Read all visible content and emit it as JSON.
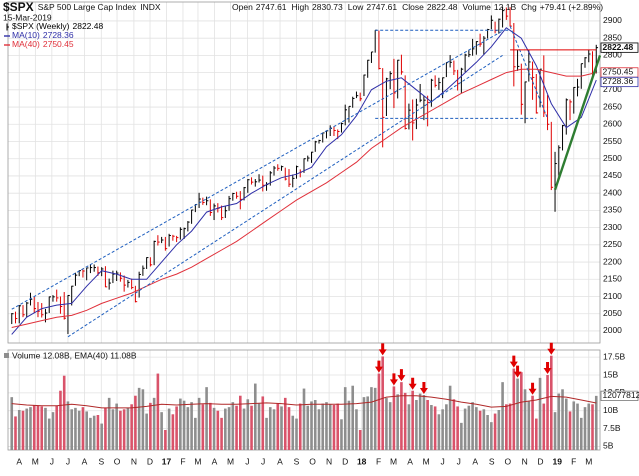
{
  "chart_data": {
    "type": "ohlc",
    "symbol": "$SPX",
    "name": "S&P 500 Large Cap Index",
    "exchange": "INDX",
    "date": "15-Mar-2019",
    "stats": [
      {
        "label": "Open",
        "value": "2747.61"
      },
      {
        "label": "High",
        "value": "2830.73"
      },
      {
        "label": "Low",
        "value": "2747.61"
      },
      {
        "label": "Close",
        "value": "2822.48"
      },
      {
        "label": "Volume",
        "value": "12.1B"
      },
      {
        "label": "Chg",
        "value": "+79.41 (+2.89%)"
      }
    ],
    "xlim": [
      -1,
      157
    ],
    "xticks": [
      {
        "value": 2,
        "label": "A"
      },
      {
        "value": 6.3,
        "label": "M"
      },
      {
        "value": 10.7,
        "label": "J"
      },
      {
        "value": 15,
        "label": "J"
      },
      {
        "value": 19.4,
        "label": "A"
      },
      {
        "value": 23.9,
        "label": "S"
      },
      {
        "value": 28.1,
        "label": "O"
      },
      {
        "value": 32.6,
        "label": "N"
      },
      {
        "value": 36.9,
        "label": "D"
      },
      {
        "value": 41.3,
        "label": "17"
      },
      {
        "value": 45.7,
        "label": "F"
      },
      {
        "value": 49.7,
        "label": "M"
      },
      {
        "value": 54.1,
        "label": "A"
      },
      {
        "value": 58.4,
        "label": "M"
      },
      {
        "value": 62.9,
        "label": "J"
      },
      {
        "value": 67.1,
        "label": "J"
      },
      {
        "value": 71.6,
        "label": "A"
      },
      {
        "value": 76,
        "label": "S"
      },
      {
        "value": 80.3,
        "label": "O"
      },
      {
        "value": 84.7,
        "label": "N"
      },
      {
        "value": 89,
        "label": "D"
      },
      {
        "value": 93.4,
        "label": "18"
      },
      {
        "value": 97.9,
        "label": "F"
      },
      {
        "value": 101.9,
        "label": "M"
      },
      {
        "value": 106.3,
        "label": "A"
      },
      {
        "value": 110.6,
        "label": "M"
      },
      {
        "value": 115,
        "label": "J"
      },
      {
        "value": 119.3,
        "label": "J"
      },
      {
        "value": 123.7,
        "label": "A"
      },
      {
        "value": 128.1,
        "label": "S"
      },
      {
        "value": 132.4,
        "label": "O"
      },
      {
        "value": 136.9,
        "label": "N"
      },
      {
        "value": 141.1,
        "label": "D"
      },
      {
        "value": 145.6,
        "label": "19"
      },
      {
        "value": 150,
        "label": "F"
      },
      {
        "value": 154,
        "label": "M"
      }
    ],
    "ylim": [
      1965,
      2955
    ],
    "yticks": [
      2000,
      2050,
      2100,
      2150,
      2200,
      2250,
      2300,
      2350,
      2400,
      2450,
      2500,
      2550,
      2600,
      2650,
      2700,
      2750,
      2800,
      2850,
      2900
    ],
    "grid": true,
    "series": [
      {
        "name": "$SPX (Weekly)",
        "last_label": "2822.48",
        "up_color": "#000000",
        "down_color": "#e00000",
        "close": [
          2050,
          2036,
          2073,
          2047,
          2081,
          2092,
          2065,
          2057,
          2047,
          2052,
          2099,
          2099,
          2096,
          2071,
          2037,
          2103,
          2130,
          2162,
          2175,
          2174,
          2183,
          2184,
          2184,
          2169,
          2180,
          2128,
          2139,
          2165,
          2168,
          2153,
          2133,
          2141,
          2126,
          2085,
          2164,
          2182,
          2213,
          2192,
          2260,
          2258,
          2264,
          2239,
          2277,
          2275,
          2271,
          2295,
          2297,
          2316,
          2351,
          2367,
          2383,
          2373,
          2378,
          2344,
          2363,
          2356,
          2329,
          2349,
          2384,
          2399,
          2391,
          2382,
          2416,
          2439,
          2432,
          2433,
          2438,
          2423,
          2425,
          2459,
          2473,
          2472,
          2477,
          2441,
          2426,
          2443,
          2477,
          2461,
          2500,
          2502,
          2519,
          2549,
          2553,
          2575,
          2581,
          2588,
          2582,
          2579,
          2602,
          2642,
          2652,
          2675,
          2683,
          2674,
          2743,
          2786,
          2810,
          2873,
          2762,
          2620,
          2732,
          2747,
          2691,
          2786,
          2752,
          2588,
          2641,
          2604,
          2656,
          2670,
          2670,
          2663,
          2728,
          2713,
          2721,
          2735,
          2779,
          2780,
          2755,
          2718,
          2760,
          2801,
          2802,
          2819,
          2840,
          2833,
          2850,
          2875,
          2902,
          2872,
          2905,
          2930,
          2914,
          2885,
          2767,
          2768,
          2658,
          2723,
          2781,
          2736,
          2633,
          2760,
          2633,
          2600,
          2417,
          2486,
          2532,
          2596,
          2671,
          2665,
          2707,
          2708,
          2776,
          2793,
          2804,
          2743,
          2822.48
        ],
        "low": [
          2020,
          2022,
          2022,
          2040,
          2039,
          2074,
          2052,
          2040,
          2039,
          2025,
          2052,
          2085,
          2085,
          2050,
          2033,
          1991,
          2074,
          2131,
          2159,
          2155,
          2147,
          2168,
          2172,
          2160,
          2159,
          2127,
          2120,
          2139,
          2145,
          2143,
          2114,
          2126,
          2121,
          2083,
          2097,
          2160,
          2180,
          2187,
          2191,
          2248,
          2255,
          2233,
          2245,
          2262,
          2258,
          2265,
          2267,
          2289,
          2311,
          2345,
          2357,
          2366,
          2365,
          2334,
          2322,
          2344,
          2322,
          2328,
          2349,
          2378,
          2384,
          2353,
          2379,
          2401,
          2425,
          2419,
          2431,
          2405,
          2407,
          2422,
          2451,
          2465,
          2465,
          2437,
          2418,
          2417,
          2442,
          2446,
          2459,
          2492,
          2488,
          2520,
          2544,
          2547,
          2559,
          2566,
          2566,
          2557,
          2576,
          2597,
          2605,
          2648,
          2676,
          2667,
          2682,
          2735,
          2778,
          2808,
          2759,
          2533,
          2624,
          2702,
          2647,
          2675,
          2744,
          2585,
          2585,
          2553,
          2586,
          2664,
          2612,
          2594,
          2651,
          2707,
          2700,
          2676,
          2737,
          2765,
          2743,
          2698,
          2691,
          2752,
          2795,
          2799,
          2802,
          2825,
          2802,
          2849,
          2876,
          2864,
          2863,
          2881,
          2903,
          2884,
          2710,
          2755,
          2628,
          2603,
          2724,
          2671,
          2631,
          2649,
          2621,
          2583,
          2409,
          2346,
          2443,
          2524,
          2570,
          2612,
          2631,
          2681,
          2703,
          2764,
          2780,
          2729,
          2747.61
        ],
        "high": [
          2052,
          2056,
          2075,
          2075,
          2084,
          2111,
          2099,
          2084,
          2081,
          2064,
          2100,
          2104,
          2120,
          2100,
          2113,
          2104,
          2131,
          2169,
          2176,
          2178,
          2183,
          2194,
          2193,
          2187,
          2185,
          2188,
          2152,
          2175,
          2175,
          2170,
          2161,
          2148,
          2152,
          2131,
          2172,
          2190,
          2214,
          2214,
          2262,
          2278,
          2273,
          2273,
          2282,
          2279,
          2276,
          2301,
          2300,
          2319,
          2352,
          2368,
          2401,
          2387,
          2390,
          2382,
          2370,
          2371,
          2364,
          2362,
          2392,
          2401,
          2404,
          2406,
          2418,
          2441,
          2446,
          2441,
          2455,
          2451,
          2432,
          2464,
          2479,
          2484,
          2480,
          2474,
          2470,
          2454,
          2480,
          2469,
          2501,
          2509,
          2520,
          2552,
          2555,
          2576,
          2582,
          2597,
          2594,
          2585,
          2605,
          2657,
          2652,
          2680,
          2695,
          2692,
          2744,
          2787,
          2810,
          2873,
          2872,
          2763,
          2735,
          2754,
          2790,
          2787,
          2802,
          2742,
          2660,
          2672,
          2674,
          2717,
          2683,
          2683,
          2732,
          2742,
          2735,
          2736,
          2780,
          2801,
          2785,
          2758,
          2764,
          2805,
          2816,
          2848,
          2841,
          2863,
          2856,
          2877,
          2916,
          2898,
          2907,
          2941,
          2939,
          2940,
          2894,
          2817,
          2776,
          2724,
          2815,
          2782,
          2746,
          2760,
          2800,
          2685,
          2607,
          2520,
          2539,
          2598,
          2675,
          2672,
          2708,
          2732,
          2776,
          2795,
          2817,
          2812,
          2830.73
        ]
      },
      {
        "name": "MA(10)",
        "last_label": "2728.36",
        "color": "#2f2fa8",
        "x": [
          0,
          4,
          8,
          12,
          16,
          20,
          24,
          28,
          32,
          36,
          40,
          44,
          48,
          52,
          56,
          60,
          64,
          68,
          72,
          76,
          80,
          84,
          88,
          92,
          96,
          100,
          104,
          108,
          112,
          116,
          120,
          124,
          128,
          132,
          136,
          140,
          144,
          148,
          152,
          156
        ],
        "values": [
          1990,
          2040,
          2065,
          2075,
          2080,
          2130,
          2175,
          2165,
          2150,
          2150,
          2200,
          2250,
          2290,
          2345,
          2360,
          2370,
          2400,
          2425,
          2445,
          2455,
          2475,
          2535,
          2570,
          2625,
          2700,
          2725,
          2735,
          2700,
          2665,
          2700,
          2740,
          2780,
          2825,
          2880,
          2850,
          2770,
          2660,
          2590,
          2620,
          2728.36
        ]
      },
      {
        "name": "MA(40)",
        "last_label": "2750.45",
        "color": "#e0303a",
        "x": [
          0,
          4,
          8,
          12,
          16,
          20,
          24,
          28,
          32,
          36,
          40,
          44,
          48,
          52,
          56,
          60,
          64,
          68,
          72,
          76,
          80,
          84,
          88,
          92,
          96,
          100,
          104,
          108,
          112,
          116,
          120,
          124,
          128,
          132,
          136,
          140,
          144,
          148,
          152,
          156
        ],
        "values": [
          2010,
          2020,
          2030,
          2040,
          2045,
          2060,
          2080,
          2095,
          2110,
          2130,
          2150,
          2165,
          2185,
          2210,
          2235,
          2260,
          2290,
          2320,
          2350,
          2380,
          2405,
          2430,
          2460,
          2490,
          2530,
          2560,
          2590,
          2615,
          2640,
          2665,
          2690,
          2710,
          2730,
          2750,
          2760,
          2760,
          2750,
          2740,
          2740,
          2750.45
        ]
      }
    ],
    "trendlines": [
      {
        "color": "#1f5fbf",
        "line": "dashed",
        "x": [
          0,
          131
        ],
        "y": [
          2063,
          2871
        ]
      },
      {
        "color": "#1f5fbf",
        "line": "dashed",
        "x": [
          15,
          131
        ],
        "y": [
          1983,
          2800
        ]
      },
      {
        "color": "#1f5fbf",
        "line": "dashed",
        "x": [
          97,
          133
        ],
        "y": [
          2873,
          2873
        ]
      },
      {
        "color": "#1f5fbf",
        "line": "dashed",
        "x": [
          97,
          140
        ],
        "y": [
          2617,
          2617
        ]
      },
      {
        "color": "#1f5fbf",
        "line": "dashed",
        "x": [
          133,
          143
        ],
        "y": [
          2885,
          2617
        ]
      },
      {
        "color": "#e00000",
        "line": "solid",
        "x": [
          133,
          156
        ],
        "y": [
          2816,
          2816
        ]
      },
      {
        "color": "#2e7d32",
        "line": "bold",
        "x": [
          145,
          157
        ],
        "y": [
          2410,
          2800
        ]
      }
    ],
    "volume": {
      "legend": "Volume 12.08B, EMA(40) 11.08B",
      "box_label": "12077812",
      "up_color": "#8e8e8e",
      "down_color": "#d9536a",
      "ylim": [
        4.5,
        18.5
      ],
      "yticks": [
        {
          "value": 5,
          "label": "5B"
        },
        {
          "value": 7.5,
          "label": "7.5B"
        },
        {
          "value": 10,
          "label": "10B"
        },
        {
          "value": 12.5,
          "label": "12.5B"
        },
        {
          "value": 15,
          "label": "15B"
        },
        {
          "value": 17.5,
          "label": "17.5B"
        }
      ],
      "values": [
        11.9,
        9.2,
        10.1,
        10.0,
        10.3,
        10.5,
        10.8,
        10.7,
        10.6,
        10.4,
        8.9,
        9.8,
        10.7,
        12.8,
        14.9,
        11.3,
        10.2,
        10.4,
        10.0,
        10.5,
        9.9,
        9.0,
        9.3,
        9.4,
        8.2,
        10.4,
        11.8,
        10.2,
        11.0,
        10.0,
        10.2,
        10.4,
        10.9,
        12.1,
        13.2,
        13.0,
        9.6,
        11.1,
        11.8,
        15.2,
        9.8,
        7.3,
        10.3,
        9.5,
        10.6,
        11.7,
        11.4,
        10.5,
        11.2,
        9.0,
        11.8,
        10.9,
        13.3,
        11.1,
        10.4,
        10.0,
        9.0,
        10.3,
        10.5,
        11.2,
        10.7,
        12.1,
        10.3,
        11.6,
        10.7,
        13.8,
        11.0,
        12.0,
        9.0,
        10.5,
        10.2,
        11.0,
        10.6,
        11.8,
        10.5,
        9.3,
        8.9,
        11.0,
        13.1,
        10.7,
        11.3,
        11.5,
        10.2,
        11.0,
        11.2,
        10.9,
        10.8,
        11.0,
        8.8,
        13.3,
        11.4,
        13.5,
        10.2,
        7.3,
        11.9,
        12.0,
        13.3,
        13.2,
        15.2,
        17.6,
        11.8,
        11.2,
        13.4,
        12.3,
        14.0,
        12.5,
        10.9,
        12.8,
        11.5,
        12.4,
        12.2,
        11.5,
        10.8,
        10.6,
        9.5,
        10.2,
        10.9,
        13.5,
        11.6,
        10.6,
        8.3,
        10.3,
        10.7,
        11.2,
        10.5,
        10.0,
        10.2,
        9.4,
        8.4,
        9.6,
        10.1,
        14.0,
        10.9,
        11.0,
        15.9,
        14.5,
        15.4,
        13.0,
        11.3,
        12.1,
        8.9,
        14.6,
        11.0,
        15.0,
        17.7,
        9.8,
        12.4,
        13.0,
        11.7,
        9.9,
        11.3,
        11.0,
        9.0,
        10.5,
        11.0,
        10.9,
        12.08
      ],
      "ema": {
        "color": "#b02828",
        "x": [
          0,
          4,
          8,
          12,
          16,
          20,
          24,
          28,
          32,
          36,
          40,
          44,
          48,
          52,
          56,
          60,
          64,
          68,
          72,
          76,
          80,
          84,
          88,
          92,
          96,
          100,
          104,
          108,
          112,
          116,
          120,
          124,
          128,
          132,
          136,
          140,
          144,
          148,
          152,
          156
        ],
        "values": [
          11.0,
          10.8,
          10.7,
          10.7,
          10.9,
          10.7,
          10.4,
          10.4,
          10.4,
          10.6,
          10.9,
          10.8,
          10.9,
          11.0,
          10.9,
          10.9,
          11.0,
          11.1,
          11.0,
          10.8,
          10.9,
          10.9,
          10.9,
          11.0,
          11.2,
          11.9,
          12.1,
          12.1,
          11.9,
          11.6,
          11.2,
          10.9,
          10.5,
          10.6,
          11.2,
          11.5,
          12.0,
          11.9,
          11.5,
          11.08
        ]
      },
      "arrows": {
        "color": "#e00000",
        "x": [
          98,
          99,
          102,
          104,
          107,
          110,
          134,
          135,
          139,
          143,
          144
        ]
      }
    }
  }
}
